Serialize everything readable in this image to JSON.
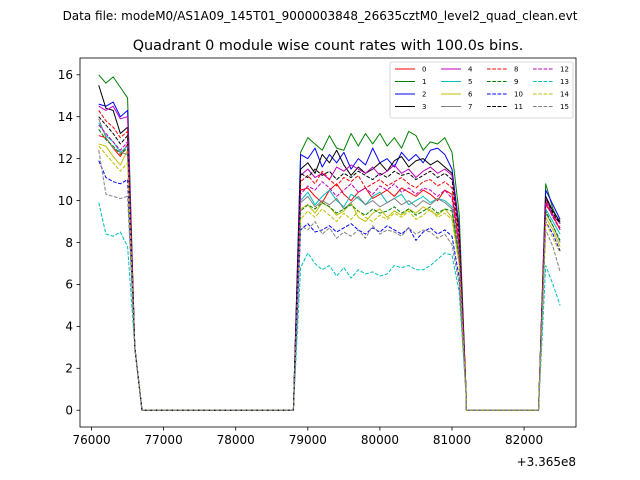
{
  "chart_data": {
    "type": "line",
    "suptitle": "Data file: modeM0/AS1A09_145T01_9000003848_26635cztM0_level2_quad_clean.evt",
    "title": "Quadrant 0 module wise count rates with 100.0s bins.",
    "xlabel": "",
    "ylabel": "",
    "x_offset_label": "+3.365e8",
    "xlim": [
      75840,
      82720
    ],
    "ylim": [
      -0.8,
      16.8
    ],
    "x_ticks": [
      76000,
      77000,
      78000,
      79000,
      80000,
      81000,
      82000
    ],
    "x_tick_labels": [
      "76000",
      "77000",
      "78000",
      "79000",
      "80000",
      "81000",
      "82000"
    ],
    "y_ticks": [
      0,
      2,
      4,
      6,
      8,
      10,
      12,
      14,
      16
    ],
    "y_tick_labels": [
      "0",
      "2",
      "4",
      "6",
      "8",
      "10",
      "12",
      "14",
      "16"
    ],
    "legend_location": "top-right",
    "segments": [
      {
        "start": 76100,
        "step": 100,
        "n": 5,
        "drop": [
          3.0,
          0.03
        ]
      },
      {
        "start": 76700,
        "step": 100,
        "n": 20,
        "flat": 0
      },
      {
        "rise": [
          0.7,
          0.2
        ],
        "start": 78800,
        "step": 100,
        "n": 22,
        "drop": [
          7.4,
          0.45
        ]
      },
      {
        "start": 81200,
        "step": 100,
        "n": 10,
        "flat": 0
      },
      {
        "rise": [
          0.75,
          0.1
        ],
        "start": 82200,
        "step": 100,
        "n": 3
      }
    ],
    "series": [
      {
        "name": "0",
        "color": "#ff0000",
        "dash": false,
        "levels": [
          13.1,
          13.0,
          12.5,
          12.1,
          12.7
        ],
        "plateau": [
          10.5,
          10.6,
          10.2,
          9.9,
          10.5,
          10.8,
          10.3,
          10.0,
          10.4,
          10.6,
          10.1,
          10.3,
          10.5,
          10.2,
          10.6,
          10.4,
          10.2,
          10.5,
          10.3,
          10.0,
          10.5,
          10.3
        ],
        "tail": [
          9.8,
          9.3,
          8.6
        ]
      },
      {
        "name": "1",
        "color": "#008000",
        "dash": false,
        "levels": [
          16.0,
          15.6,
          15.9,
          15.4,
          14.9
        ],
        "plateau": [
          12.3,
          13.0,
          12.7,
          12.4,
          13.1,
          12.5,
          12.4,
          13.2,
          12.6,
          13.2,
          12.7,
          13.2,
          12.6,
          13.0,
          12.5,
          13.3,
          13.1,
          12.4,
          12.8,
          12.7,
          13.0,
          12.3
        ],
        "tail": [
          10.8,
          9.6,
          8.9
        ]
      },
      {
        "name": "2",
        "color": "#0000ff",
        "dash": false,
        "levels": [
          14.6,
          14.5,
          14.7,
          14.0,
          14.3
        ],
        "plateau": [
          12.2,
          12.0,
          12.5,
          11.6,
          12.2,
          11.8,
          12.3,
          11.5,
          12.0,
          11.7,
          12.5,
          11.8,
          12.0,
          11.6,
          12.3,
          11.9,
          12.2,
          11.8,
          12.4,
          12.5,
          12.2,
          11.5
        ],
        "tail": [
          10.5,
          9.8,
          9.1
        ]
      },
      {
        "name": "3",
        "color": "#000000",
        "dash": false,
        "levels": [
          15.5,
          14.4,
          14.3,
          13.2,
          13.5
        ],
        "plateau": [
          11.5,
          11.8,
          11.3,
          12.2,
          11.8,
          12.4,
          11.7,
          11.2,
          11.6,
          11.3,
          11.5,
          11.8,
          11.4,
          11.9,
          12.1,
          11.6,
          11.9,
          12.0,
          11.7,
          11.9,
          11.6,
          11.3
        ],
        "tail": [
          10.2,
          9.5,
          9.0
        ]
      },
      {
        "name": "4",
        "color": "#bf00bf",
        "dash": false,
        "levels": [
          14.5,
          14.3,
          14.5,
          13.9,
          14.0
        ],
        "plateau": [
          11.2,
          11.5,
          11.1,
          11.3,
          11.0,
          11.6,
          11.4,
          11.7,
          11.5,
          11.3,
          11.6,
          11.2,
          11.4,
          11.7,
          11.3,
          11.5,
          11.1,
          11.4,
          11.6,
          11.3,
          11.5,
          11.2
        ],
        "tail": [
          10.1,
          9.3,
          8.9
        ]
      },
      {
        "name": "5",
        "color": "#00bfbf",
        "dash": false,
        "levels": [
          13.7,
          13.1,
          12.8,
          12.3,
          12.6
        ],
        "plateau": [
          10.0,
          10.4,
          9.8,
          10.2,
          10.5,
          10.0,
          9.7,
          10.3,
          10.1,
          9.8,
          10.2,
          10.4,
          9.9,
          10.1,
          10.3,
          9.8,
          10.0,
          10.2,
          9.9,
          10.1,
          10.0,
          9.7
        ],
        "tail": [
          9.6,
          9.0,
          8.4
        ]
      },
      {
        "name": "6",
        "color": "#bfbf00",
        "dash": false,
        "levels": [
          12.7,
          12.6,
          12.1,
          11.7,
          12.4
        ],
        "plateau": [
          9.6,
          9.8,
          9.4,
          9.9,
          9.7,
          9.3,
          9.5,
          9.9,
          9.2,
          9.0,
          9.4,
          9.6,
          9.2,
          9.5,
          9.3,
          9.6,
          9.4,
          9.7,
          9.5,
          9.3,
          9.6,
          9.2
        ],
        "tail": [
          9.2,
          8.6,
          7.8
        ]
      },
      {
        "name": "7",
        "color": "#808080",
        "dash": false,
        "levels": [
          13.9,
          13.0,
          12.5,
          12.3,
          12.2
        ],
        "plateau": [
          9.9,
          10.2,
          9.7,
          10.0,
          9.8,
          10.1,
          9.6,
          9.9,
          10.2,
          9.8,
          10.0,
          9.7,
          9.9,
          10.1,
          9.8,
          10.0,
          9.7,
          10.0,
          9.8,
          10.1,
          9.9,
          9.6
        ],
        "tail": [
          9.4,
          8.8,
          8.0
        ]
      },
      {
        "name": "8",
        "color": "#ff0000",
        "dash": true,
        "levels": [
          14.3,
          13.8,
          13.5,
          13.0,
          13.3
        ],
        "plateau": [
          10.9,
          11.2,
          10.8,
          11.4,
          11.0,
          10.7,
          11.1,
          10.9,
          11.2,
          10.6,
          10.8,
          11.0,
          10.7,
          10.9,
          11.1,
          10.8,
          10.6,
          10.9,
          11.0,
          10.7,
          10.9,
          10.6
        ],
        "tail": [
          10.0,
          9.2,
          8.7
        ]
      },
      {
        "name": "9",
        "color": "#008000",
        "dash": true,
        "levels": [
          13.4,
          12.9,
          12.6,
          12.2,
          12.5
        ],
        "plateau": [
          9.5,
          9.8,
          9.6,
          9.9,
          9.7,
          9.4,
          9.6,
          9.8,
          9.5,
          9.3,
          9.6,
          9.4,
          9.5,
          9.7,
          9.4,
          9.6,
          9.3,
          9.5,
          9.7,
          9.4,
          9.6,
          9.5
        ],
        "tail": [
          9.5,
          8.8,
          8.1
        ]
      },
      {
        "name": "10",
        "color": "#0000ff",
        "dash": true,
        "levels": [
          11.9,
          11.1,
          10.9,
          10.8,
          11.0
        ],
        "plateau": [
          8.6,
          8.9,
          8.5,
          8.6,
          8.8,
          8.5,
          8.7,
          8.9,
          8.6,
          8.4,
          8.7,
          8.5,
          8.8,
          8.6,
          8.4,
          8.7,
          8.1,
          8.5,
          8.7,
          8.4,
          8.6,
          8.3
        ],
        "tail": [
          9.0,
          8.4,
          7.6
        ]
      },
      {
        "name": "11",
        "color": "#000000",
        "dash": true,
        "levels": [
          14.0,
          13.6,
          13.2,
          12.7,
          13.1
        ],
        "plateau": [
          11.3,
          11.1,
          11.5,
          11.2,
          11.4,
          11.0,
          11.3,
          11.1,
          11.4,
          11.2,
          11.0,
          11.3,
          11.1,
          11.4,
          11.2,
          11.3,
          11.0,
          11.2,
          11.4,
          11.1,
          11.3,
          11.0
        ],
        "tail": [
          10.2,
          9.4,
          8.9
        ]
      },
      {
        "name": "12",
        "color": "#bf00bf",
        "dash": true,
        "levels": [
          13.6,
          13.2,
          12.8,
          12.4,
          12.8
        ],
        "plateau": [
          10.3,
          10.7,
          10.5,
          10.9,
          10.6,
          10.2,
          10.5,
          10.8,
          10.4,
          10.6,
          10.3,
          10.7,
          10.5,
          10.8,
          10.4,
          10.6,
          10.3,
          10.6,
          10.5,
          10.2,
          10.5,
          10.1
        ],
        "tail": [
          9.9,
          9.2,
          8.6
        ]
      },
      {
        "name": "13",
        "color": "#00bfbf",
        "dash": true,
        "levels": [
          9.9,
          8.4,
          8.3,
          8.5,
          7.8
        ],
        "plateau": [
          6.8,
          7.5,
          7.0,
          6.7,
          6.9,
          6.4,
          6.8,
          6.3,
          6.7,
          6.5,
          6.6,
          6.4,
          6.5,
          6.9,
          6.8,
          6.9,
          6.7,
          6.7,
          6.9,
          7.2,
          7.5,
          7.4
        ],
        "tail": [
          6.9,
          6.0,
          5.0
        ]
      },
      {
        "name": "14",
        "color": "#bfbf00",
        "dash": true,
        "levels": [
          12.6,
          12.2,
          11.8,
          11.4,
          11.8
        ],
        "plateau": [
          9.1,
          9.5,
          9.2,
          9.6,
          9.3,
          9.0,
          9.4,
          9.1,
          9.5,
          9.2,
          9.0,
          9.3,
          9.1,
          9.4,
          9.2,
          9.5,
          9.1,
          9.3,
          9.6,
          9.2,
          9.4,
          9.1
        ],
        "tail": [
          9.0,
          8.2,
          7.5
        ]
      },
      {
        "name": "15",
        "color": "#808080",
        "dash": true,
        "levels": [
          12.4,
          10.3,
          10.2,
          10.1,
          10.2
        ],
        "plateau": [
          8.8,
          8.6,
          9.0,
          8.4,
          8.7,
          8.2,
          8.5,
          8.3,
          8.6,
          8.2,
          8.8,
          8.4,
          8.6,
          8.5,
          8.3,
          8.7,
          8.4,
          8.6,
          8.5,
          8.2,
          8.4,
          7.9
        ],
        "tail": [
          8.6,
          7.8,
          6.6
        ]
      }
    ]
  }
}
